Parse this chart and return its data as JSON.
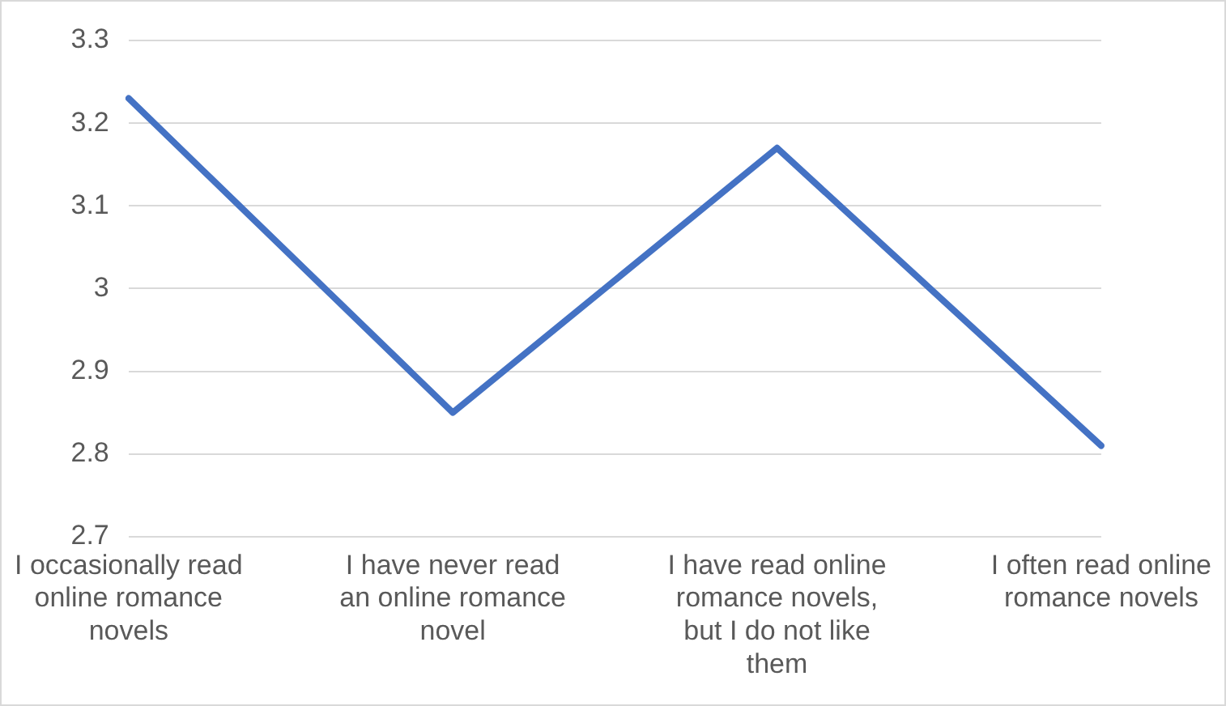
{
  "chart_data": {
    "type": "line",
    "categories": [
      "I occasionally read online romance novels",
      "I have never read an online romance novel",
      "I have read online romance novels, but I do not like them",
      "I often read online romance novels"
    ],
    "series": [
      {
        "color": "#4472c4",
        "values": [
          3.23,
          2.85,
          3.17,
          2.81
        ]
      }
    ],
    "ylim": [
      2.7,
      3.3
    ],
    "yticks": [
      2.7,
      2.8,
      2.9,
      3,
      3.1,
      3.2,
      3.3
    ],
    "grid": "y",
    "legend": false,
    "marker": "none",
    "line_style": "solid"
  }
}
